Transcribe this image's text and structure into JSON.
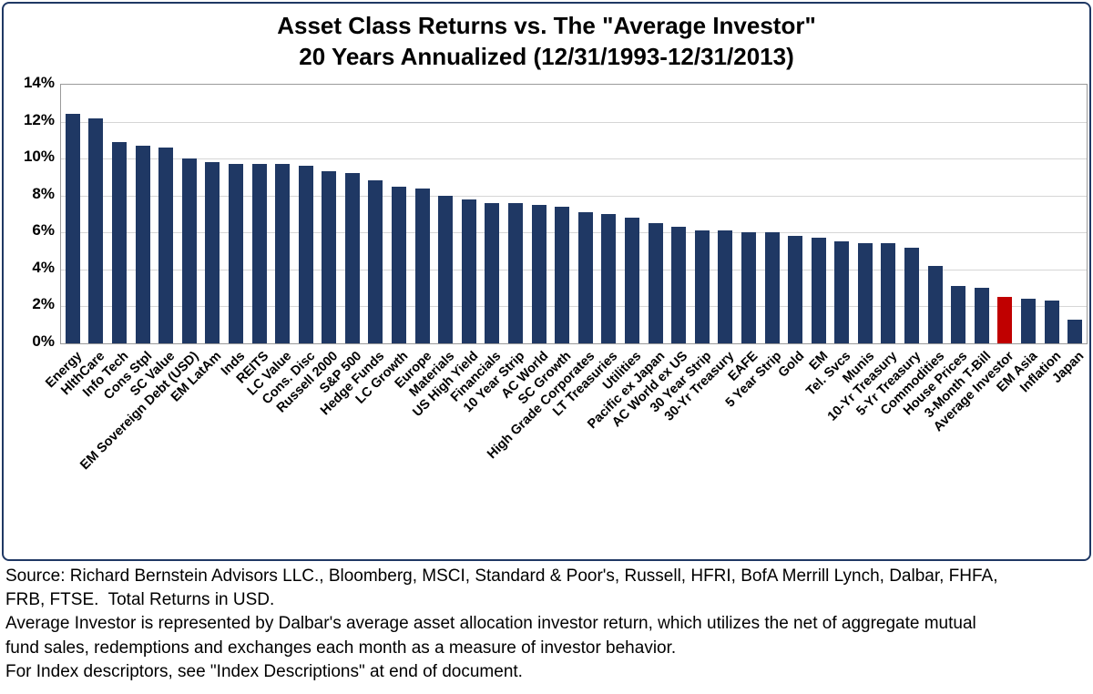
{
  "title_line1": "Asset Class Returns vs. The \"Average Investor\"",
  "title_line2": "20 Years Annualized (12/31/1993-12/31/2013)",
  "colors": {
    "bar": "#1F3864",
    "highlight": "#C00000",
    "grid": "#d6d6d6",
    "panel_border": "#1F3864"
  },
  "footer_lines": [
    "Source: Richard Bernstein Advisors LLC., Bloomberg, MSCI, Standard & Poor's, Russell, HFRI, BofA Merrill Lynch, Dalbar, FHFA,",
    "FRB, FTSE.  Total Returns in USD.",
    "Average Investor is represented by Dalbar's average asset allocation investor return, which utilizes the net of aggregate mutual",
    "fund sales, redemptions and exchanges each month as a measure of investor behavior.",
    "For Index descriptors, see \"Index Descriptions\" at end of document."
  ],
  "chart_data": {
    "type": "bar",
    "title": "Asset Class Returns vs. The \"Average Investor\" 20 Years Annualized (12/31/1993-12/31/2013)",
    "xlabel": "",
    "ylabel": "",
    "ylim": [
      0,
      14
    ],
    "ytick_step": 2,
    "ytick_suffix": "%",
    "grid": true,
    "legend": "none",
    "highlight_category": "Average Investor",
    "categories": [
      "Energy",
      "HlthCare",
      "Info Tech",
      "Cons Stpl",
      "SC Value",
      "EM Sovereign Debt (USD)",
      "EM LatAm",
      "Inds",
      "REITS",
      "LC Value",
      "Cons. Disc",
      "Russell 2000",
      "S&P 500",
      "Hedge Funds",
      "LC Growth",
      "Europe",
      "Materials",
      "US High Yield",
      "Financials",
      "10 Year Strip",
      "AC World",
      "SC Growth",
      "High Grade Corporates",
      "LT Treasuries",
      "Utilities",
      "Pacific ex Japan",
      "AC World ex US",
      "30 Year Strip",
      "30-Yr Treasury",
      "EAFE",
      "5 Year Strip",
      "Gold",
      "EM",
      "Tel. Svcs",
      "Munis",
      "10-Yr Treasury",
      "5-Yr Treasury",
      "Commodities",
      "House Prices",
      "3-Month T-Bill",
      "Average Investor",
      "EM Asia",
      "Inflation",
      "Japan"
    ],
    "values": [
      12.4,
      12.2,
      10.9,
      10.7,
      10.6,
      10.0,
      9.8,
      9.7,
      9.7,
      9.7,
      9.6,
      9.3,
      9.2,
      8.8,
      8.5,
      8.4,
      8.0,
      7.8,
      7.6,
      7.6,
      7.5,
      7.4,
      7.1,
      7.0,
      6.8,
      6.5,
      6.3,
      6.1,
      6.1,
      6.0,
      6.0,
      5.8,
      5.7,
      5.5,
      5.4,
      5.4,
      5.2,
      4.2,
      3.1,
      3.0,
      2.5,
      2.4,
      2.3,
      1.3
    ]
  }
}
